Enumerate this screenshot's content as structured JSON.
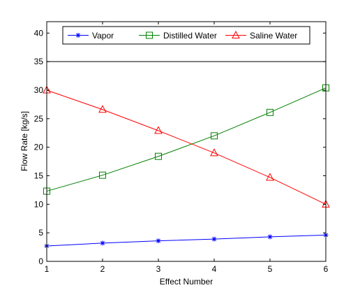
{
  "chart_data": {
    "type": "line",
    "title": "",
    "xlabel": "Effect Number",
    "ylabel": "Flow Rate [kg/s]",
    "xlim": [
      1,
      6
    ],
    "ylim": [
      0,
      42
    ],
    "xticks": [
      1,
      2,
      3,
      4,
      5,
      6
    ],
    "yticks": [
      0,
      5,
      10,
      15,
      20,
      25,
      30,
      35,
      40
    ],
    "grid": false,
    "legend_position": "top",
    "x": [
      1,
      2,
      3,
      4,
      5,
      6
    ],
    "series": [
      {
        "name": "Vapor",
        "color": "#0000ff",
        "marker": "asterisk",
        "values": [
          2.7,
          3.2,
          3.6,
          3.9,
          4.3,
          4.6
        ]
      },
      {
        "name": "Distilled Water",
        "color": "#008000",
        "marker": "square",
        "values": [
          12.3,
          15.1,
          18.4,
          22.0,
          26.1,
          30.4
        ]
      },
      {
        "name": "Saline Water",
        "color": "#ff0000",
        "marker": "triangle",
        "values": [
          30.0,
          26.6,
          22.9,
          19.0,
          14.7,
          10.0
        ]
      }
    ],
    "reference_lines": [
      {
        "y": 35,
        "color": "#000000"
      }
    ]
  }
}
